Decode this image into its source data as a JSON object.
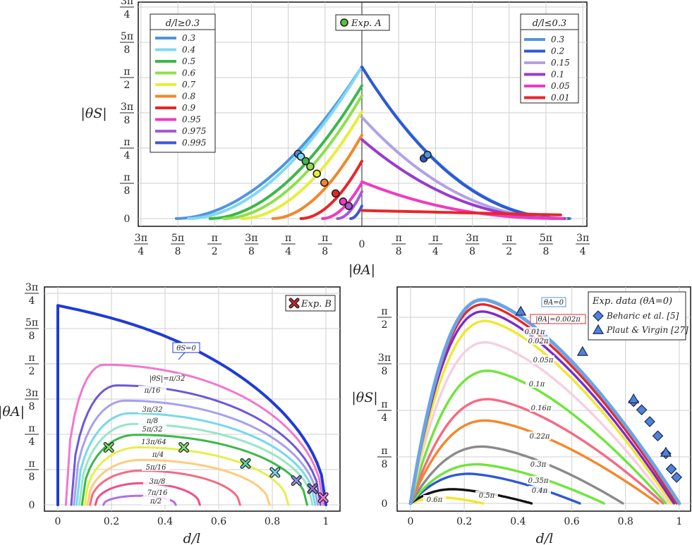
{
  "chart_data": [
    {
      "id": "top",
      "type": "line",
      "xlabel": "|θA|",
      "ylabel": "|θS|",
      "xlim": [
        -2.4,
        2.4
      ],
      "ylim": [
        0,
        2.4
      ],
      "xticks": [
        {
          "v": -2.356,
          "t": "3π/4"
        },
        {
          "v": -1.963,
          "t": "5π/8"
        },
        {
          "v": -1.571,
          "t": "π/2"
        },
        {
          "v": -1.178,
          "t": "3π/8"
        },
        {
          "v": -0.785,
          "t": "π/4"
        },
        {
          "v": -0.393,
          "t": "π/8"
        },
        {
          "v": 0,
          "t": "0"
        },
        {
          "v": 0.393,
          "t": "π/8"
        },
        {
          "v": 0.785,
          "t": "π/4"
        },
        {
          "v": 1.178,
          "t": "3π/8"
        },
        {
          "v": 1.571,
          "t": "π/2"
        },
        {
          "v": 1.963,
          "t": "5π/8"
        },
        {
          "v": 2.356,
          "t": "3π/4"
        }
      ],
      "yticks": [
        {
          "v": 0,
          "t": "0"
        },
        {
          "v": 0.393,
          "t": "π/8"
        },
        {
          "v": 0.785,
          "t": "π/4"
        },
        {
          "v": 1.178,
          "t": "3π/8"
        },
        {
          "v": 1.571,
          "t": "π/2"
        },
        {
          "v": 1.963,
          "t": "5π/8"
        },
        {
          "v": 2.356,
          "t": "3π/4"
        }
      ],
      "legend_left": {
        "title": "d/l≥0.3",
        "entries": [
          {
            "label": "0.3",
            "color": "#4f95e0"
          },
          {
            "label": "0.4",
            "color": "#7fd8f2"
          },
          {
            "label": "0.5",
            "color": "#3cb84a"
          },
          {
            "label": "0.6",
            "color": "#8ee04a"
          },
          {
            "label": "0.7",
            "color": "#e6ee3a"
          },
          {
            "label": "0.8",
            "color": "#f5862a"
          },
          {
            "label": "0.9",
            "color": "#e8262a"
          },
          {
            "label": "0.95",
            "color": "#f03ac0"
          },
          {
            "label": "0.975",
            "color": "#a65ad6"
          },
          {
            "label": "0.995",
            "color": "#3f55d8"
          }
        ]
      },
      "legend_right": {
        "title": "d/l≤0.3",
        "entries": [
          {
            "label": "0.3",
            "color": "#4f95e0"
          },
          {
            "label": "0.2",
            "color": "#2e5ad4"
          },
          {
            "label": "0.15",
            "color": "#b0a2e6"
          },
          {
            "label": "0.1",
            "color": "#9a3ad0"
          },
          {
            "label": "0.05",
            "color": "#f03ac0"
          },
          {
            "label": "0.01",
            "color": "#e8262a"
          }
        ]
      },
      "marker_legend": "Exp. A",
      "left_series": [
        {
          "dl": 0.3,
          "peak": 1.69,
          "ext": 1.98,
          "color": "#4f95e0"
        },
        {
          "dl": 0.4,
          "peak": 1.69,
          "ext": 1.85,
          "color": "#7fd8f2"
        },
        {
          "dl": 0.5,
          "peak": 1.48,
          "ext": 1.62,
          "color": "#3cb84a"
        },
        {
          "dl": 0.6,
          "peak": 1.37,
          "ext": 1.47,
          "color": "#8ee04a"
        },
        {
          "dl": 0.7,
          "peak": 1.19,
          "ext": 1.28,
          "color": "#e6ee3a"
        },
        {
          "dl": 0.8,
          "peak": 0.93,
          "ext": 0.95,
          "color": "#f5862a"
        },
        {
          "dl": 0.9,
          "peak": 0.64,
          "ext": 0.65,
          "color": "#e8262a"
        },
        {
          "dl": 0.95,
          "peak": 0.4,
          "ext": 0.42,
          "color": "#f03ac0"
        },
        {
          "dl": 0.975,
          "peak": 0.3,
          "ext": 0.26,
          "color": "#a65ad6"
        },
        {
          "dl": 0.995,
          "peak": 0.14,
          "ext": 0.12,
          "color": "#3f55d8"
        }
      ],
      "right_series": [
        {
          "dl": 0.3,
          "peak": 1.69,
          "ext": 2.22,
          "color": "#4f95e0"
        },
        {
          "dl": 0.2,
          "peak": 1.69,
          "ext": 2.2,
          "color": "#2e5ad4"
        },
        {
          "dl": 0.15,
          "peak": 1.13,
          "ext": 2.18,
          "color": "#b0a2e6"
        },
        {
          "dl": 0.1,
          "peak": 0.88,
          "ext": 2.16,
          "color": "#9a3ad0"
        },
        {
          "dl": 0.05,
          "peak": 0.41,
          "ext": 2.14,
          "color": "#f03ac0"
        },
        {
          "dl": 0.01,
          "peak": 0.09,
          "ext": 2.12,
          "color": "#e8262a"
        }
      ],
      "exp_points": [
        {
          "x": -0.68,
          "y": 0.72,
          "color": "#4f95e0"
        },
        {
          "x": -0.65,
          "y": 0.69,
          "color": "#7fd8f2"
        },
        {
          "x": -0.6,
          "y": 0.64,
          "color": "#3cb84a"
        },
        {
          "x": -0.55,
          "y": 0.58,
          "color": "#8ee04a"
        },
        {
          "x": -0.48,
          "y": 0.5,
          "color": "#e6ee3a"
        },
        {
          "x": -0.4,
          "y": 0.4,
          "color": "#f5862a"
        },
        {
          "x": -0.28,
          "y": 0.28,
          "color": "#e8262a"
        },
        {
          "x": -0.2,
          "y": 0.19,
          "color": "#f03ac0"
        },
        {
          "x": -0.14,
          "y": 0.14,
          "color": "#a65ad6"
        },
        {
          "x": 0.66,
          "y": 0.67,
          "color": "#2e5ad4"
        },
        {
          "x": 0.7,
          "y": 0.71,
          "color": "#4f95e0"
        }
      ]
    },
    {
      "id": "bottom_left",
      "type": "line",
      "xlabel": "d/l",
      "ylabel": "|θA|",
      "xlim": [
        0,
        1
      ],
      "ylim": [
        0,
        2.4
      ],
      "xticks": [
        {
          "v": 0,
          "t": "0"
        },
        {
          "v": 0.2,
          "t": "0.2"
        },
        {
          "v": 0.4,
          "t": "0.4"
        },
        {
          "v": 0.6,
          "t": "0.6"
        },
        {
          "v": 0.8,
          "t": "0.8"
        },
        {
          "v": 1,
          "t": "1"
        }
      ],
      "yticks": [
        {
          "v": 0,
          "t": "0"
        },
        {
          "v": 0.393,
          "t": "π/8"
        },
        {
          "v": 0.785,
          "t": "π/4"
        },
        {
          "v": 1.178,
          "t": "3π/8"
        },
        {
          "v": 1.571,
          "t": "π/2"
        },
        {
          "v": 1.963,
          "t": "5π/8"
        },
        {
          "v": 2.356,
          "t": "3π/4"
        }
      ],
      "marker_legend": "Exp. B",
      "boundary": {
        "label": "θS=0",
        "top": 2.22,
        "color": "#1f3bd6"
      },
      "contours": [
        {
          "label": "|θS|=π/32",
          "start": 0.03,
          "end": 0.99,
          "peak": 1.56,
          "peakx": 0.17,
          "color": "#f276d0"
        },
        {
          "label": "π/16",
          "start": 0.05,
          "end": 0.98,
          "peak": 1.33,
          "peakx": 0.22,
          "color": "#6e58d8"
        },
        {
          "label": "3π/32",
          "start": 0.06,
          "end": 0.97,
          "peak": 1.16,
          "peakx": 0.25,
          "color": "#a6a0ee"
        },
        {
          "label": "π/8",
          "start": 0.07,
          "end": 0.96,
          "peak": 1.02,
          "peakx": 0.27,
          "color": "#76d8ec"
        },
        {
          "label": "5π/32",
          "start": 0.08,
          "end": 0.95,
          "peak": 0.9,
          "peakx": 0.28,
          "color": "#96e6c6"
        },
        {
          "label": "13π/64",
          "start": 0.09,
          "end": 0.93,
          "peak": 0.78,
          "peakx": 0.29,
          "color": "#3cb84a"
        },
        {
          "label": "π/4",
          "start": 0.1,
          "end": 0.86,
          "peak": 0.64,
          "peakx": 0.3,
          "color": "#e6f04a"
        },
        {
          "label": "5π/16",
          "start": 0.11,
          "end": 0.79,
          "peak": 0.5,
          "peakx": 0.31,
          "color": "#ffcc7a"
        },
        {
          "label": "3π/8",
          "start": 0.12,
          "end": 0.68,
          "peak": 0.38,
          "peakx": 0.31,
          "color": "#f56a82"
        },
        {
          "label": "7π/16",
          "start": 0.14,
          "end": 0.53,
          "peak": 0.24,
          "peakx": 0.31,
          "color": "#f04e8a"
        },
        {
          "label": "π/2",
          "start": 0.17,
          "end": 0.44,
          "peak": 0.1,
          "peakx": 0.3,
          "color": "#b070e0"
        }
      ],
      "exp_points": [
        {
          "x": 0.19,
          "y": 0.64,
          "color": "#7ee06a"
        },
        {
          "x": 0.47,
          "y": 0.64,
          "color": "#7ee06a"
        },
        {
          "x": 0.7,
          "y": 0.46,
          "color": "#5cd49a"
        },
        {
          "x": 0.81,
          "y": 0.36,
          "color": "#76d8ec"
        },
        {
          "x": 0.89,
          "y": 0.27,
          "color": "#8f8fe8"
        },
        {
          "x": 0.95,
          "y": 0.18,
          "color": "#8e6ad6"
        },
        {
          "x": 0.99,
          "y": 0.08,
          "color": "#f276d0"
        }
      ]
    },
    {
      "id": "bottom_right",
      "type": "line",
      "xlabel": "d/l",
      "ylabel": "|θS|",
      "xlim": [
        0,
        1
      ],
      "ylim": [
        0,
        1.85
      ],
      "xticks": [
        {
          "v": 0,
          "t": "0"
        },
        {
          "v": 0.2,
          "t": "0.2"
        },
        {
          "v": 0.4,
          "t": "0.4"
        },
        {
          "v": 0.6,
          "t": "0.6"
        },
        {
          "v": 0.8,
          "t": "0.8"
        },
        {
          "v": 1,
          "t": "1"
        }
      ],
      "yticks": [
        {
          "v": 0,
          "t": "0"
        },
        {
          "v": 0.393,
          "t": "π/8"
        },
        {
          "v": 0.785,
          "t": "π/4"
        },
        {
          "v": 1.178,
          "t": "3π/8"
        },
        {
          "v": 1.571,
          "t": "π/2"
        }
      ],
      "legend": {
        "title": "Exp. data (θA=0)",
        "entries": [
          {
            "label": "Beharic et al. [5]",
            "marker": "diamond",
            "color": "#4f82d8"
          },
          {
            "label": "Plaut & Virgin [27]",
            "marker": "triangle",
            "color": "#4f82d8"
          }
        ]
      },
      "boxed_labels": [
        {
          "text": "θA=0",
          "color": "#4f95e0"
        },
        {
          "text": "|θA|=0.002π",
          "color": "#e8262a"
        }
      ],
      "contours": [
        {
          "label": "θA=0",
          "end": 1.0,
          "peak": 1.72,
          "peakx": 0.27,
          "color": "#6aa4e6"
        },
        {
          "label": "|θA|=0.002π",
          "end": 0.99,
          "peak": 1.68,
          "peakx": 0.27,
          "color": "#e8262a"
        },
        {
          "label": "0.01π",
          "end": 0.98,
          "peak": 1.62,
          "peakx": 0.27,
          "color": "#7a2ad0"
        },
        {
          "label": "0.02π",
          "end": 0.97,
          "peak": 1.54,
          "peakx": 0.28,
          "color": "#f0e82a"
        },
        {
          "label": "0.05π",
          "end": 0.96,
          "peak": 1.36,
          "peakx": 0.28,
          "color": "#f6cfe0"
        },
        {
          "label": "0.1π",
          "end": 0.95,
          "peak": 1.12,
          "peakx": 0.29,
          "color": "#6ee63a"
        },
        {
          "label": "0.16π",
          "end": 0.94,
          "peak": 0.88,
          "peakx": 0.29,
          "color": "#f56a82"
        },
        {
          "label": "0.22π",
          "end": 0.92,
          "peak": 0.7,
          "peakx": 0.28,
          "color": "#f5862a"
        },
        {
          "label": "0.3π",
          "end": 0.79,
          "peak": 0.48,
          "peakx": 0.27,
          "color": "#8a8a8a"
        },
        {
          "label": "0.35π",
          "end": 0.72,
          "peak": 0.33,
          "peakx": 0.25,
          "color": "#6ee63a"
        },
        {
          "label": "0.4π",
          "end": 0.63,
          "peak": 0.25,
          "peakx": 0.22,
          "color": "#2e5ad4"
        },
        {
          "label": "0.5π",
          "end": 0.45,
          "peak": 0.12,
          "peakx": 0.16,
          "color": "#111111"
        },
        {
          "label": "0.6π",
          "end": 0.27,
          "peak": 0.05,
          "peakx": 0.12,
          "color": "#f0e82a"
        }
      ],
      "beharic": [
        {
          "x": 0.83,
          "y": 0.86
        },
        {
          "x": 0.86,
          "y": 0.79
        },
        {
          "x": 0.89,
          "y": 0.69
        },
        {
          "x": 0.92,
          "y": 0.57
        },
        {
          "x": 0.95,
          "y": 0.42
        },
        {
          "x": 0.97,
          "y": 0.29
        },
        {
          "x": 0.99,
          "y": 0.22
        }
      ],
      "plaut": [
        {
          "x": 0.41,
          "y": 1.62
        },
        {
          "x": 0.64,
          "y": 1.28
        },
        {
          "x": 0.83,
          "y": 0.88
        },
        {
          "x": 0.95,
          "y": 0.43
        }
      ]
    }
  ]
}
